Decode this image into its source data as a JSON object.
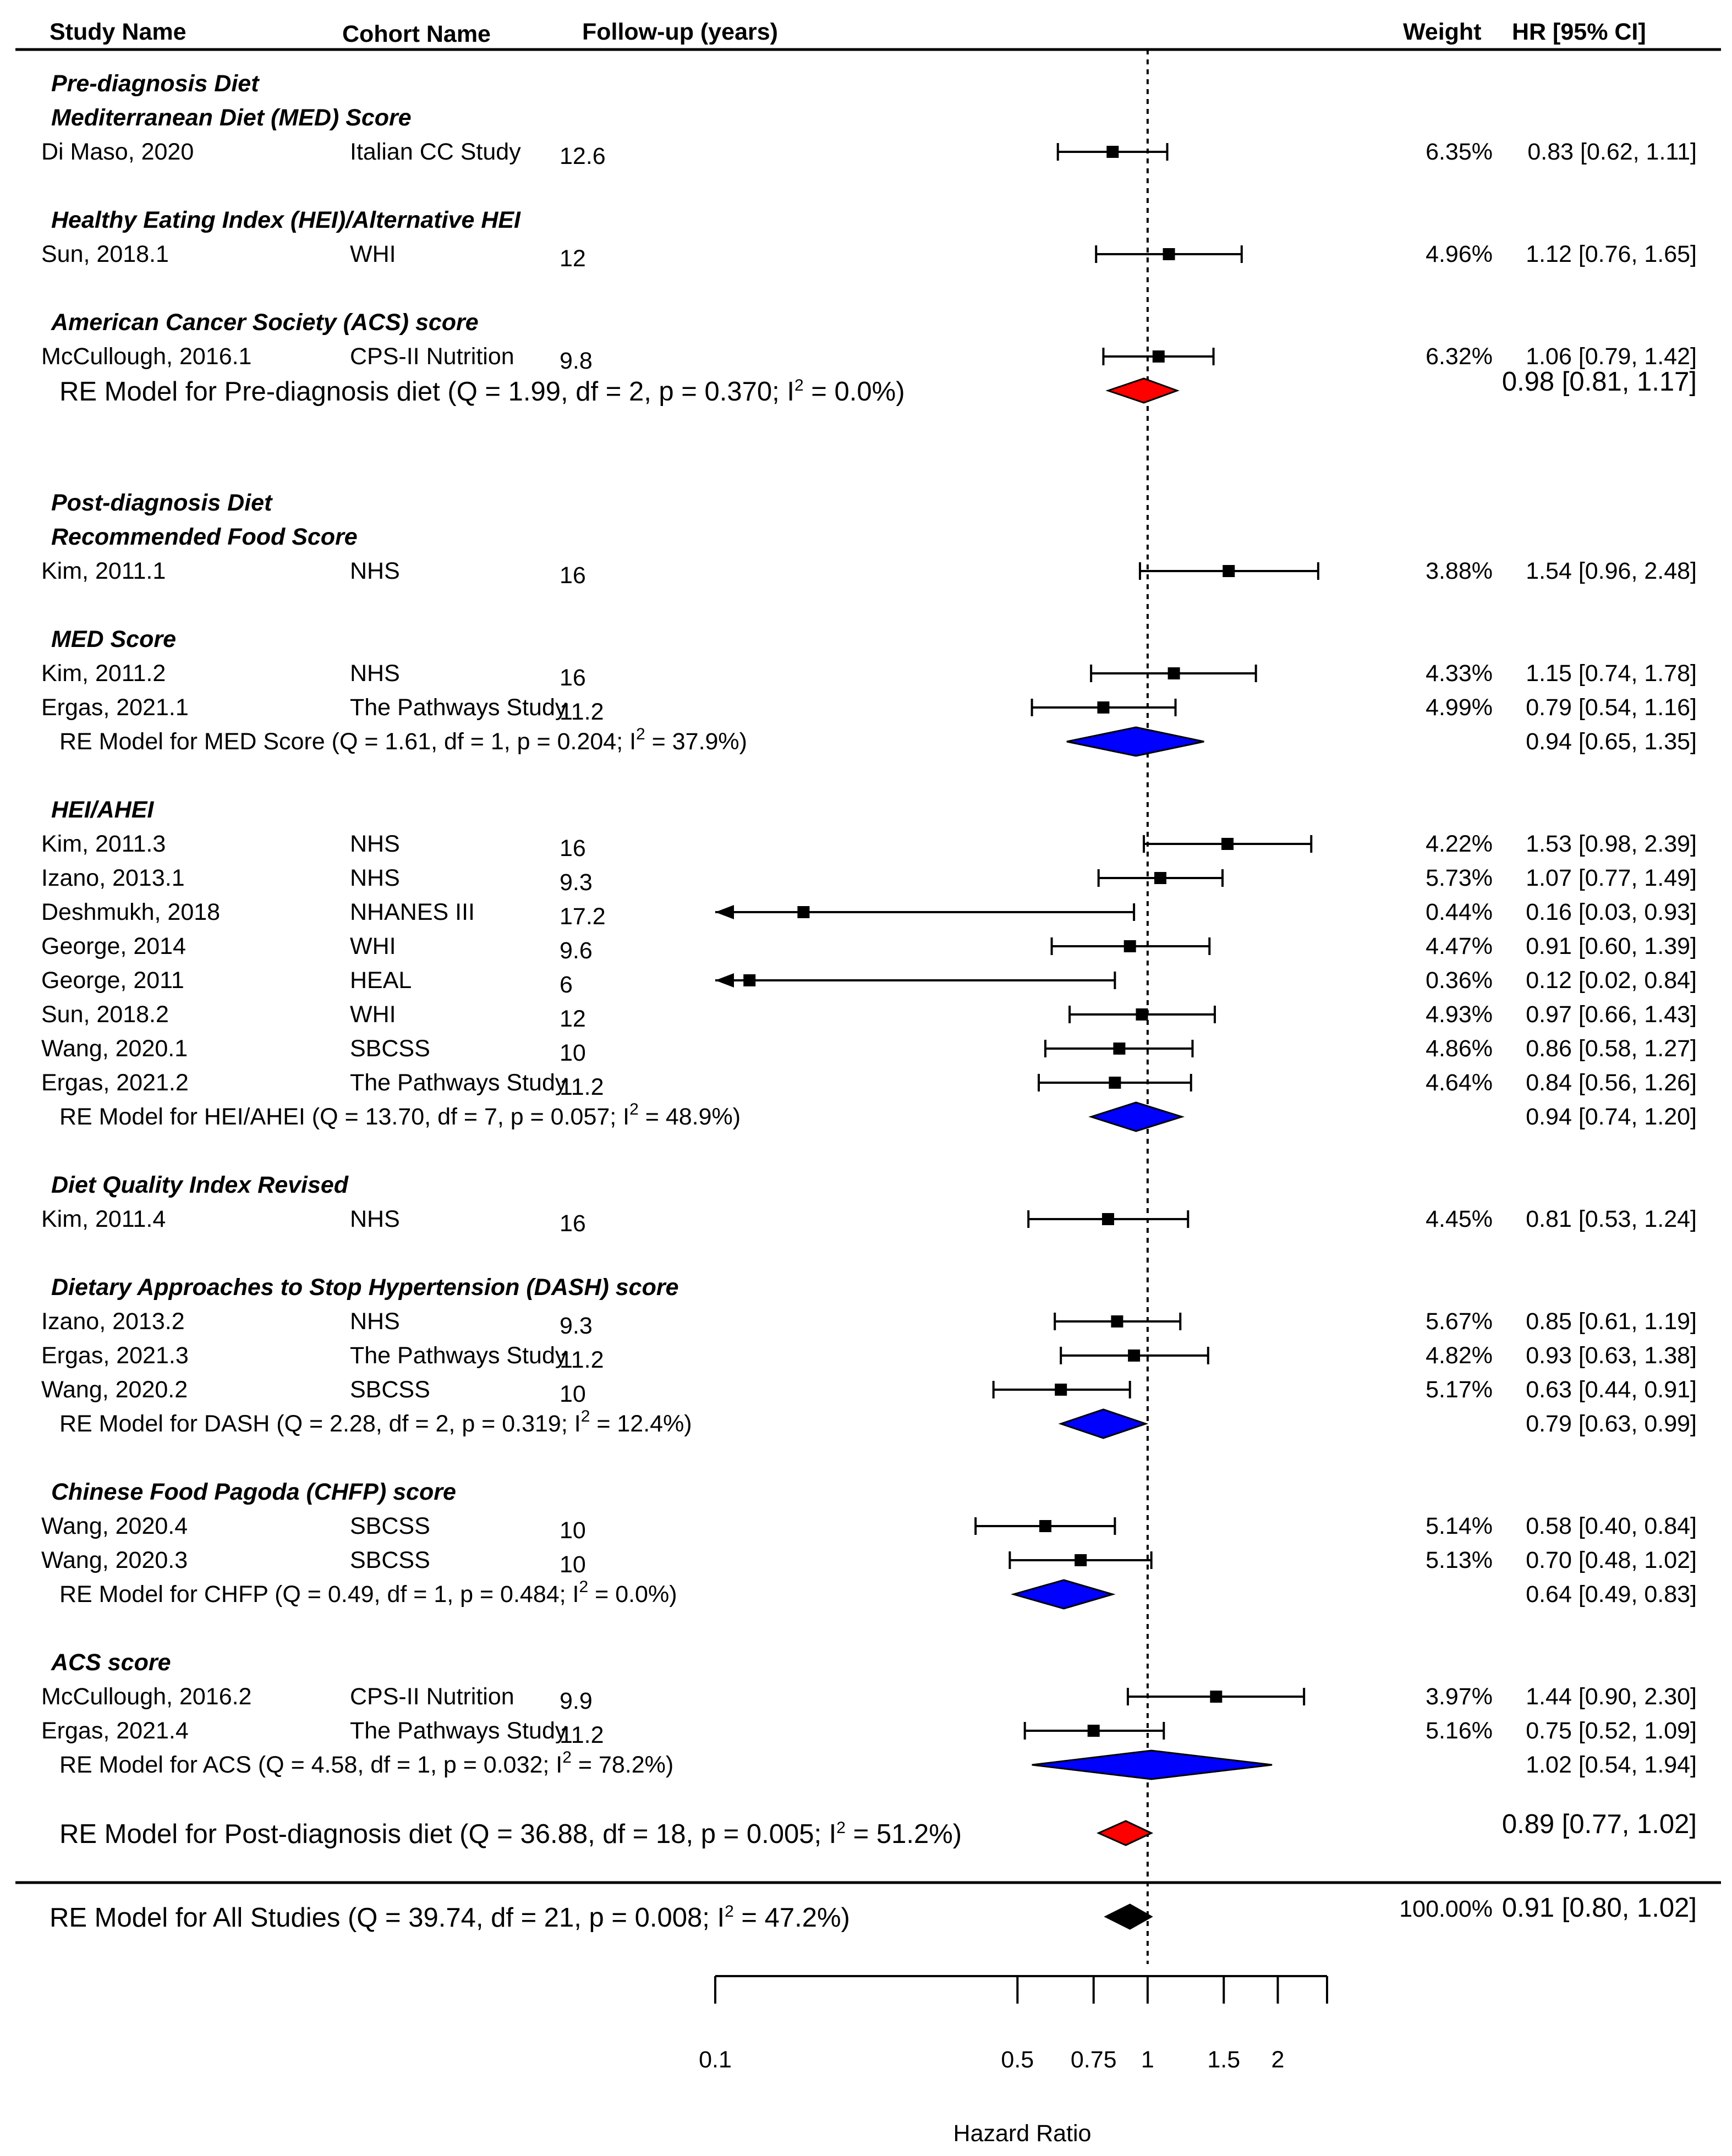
{
  "headers": {
    "study": "Study Name",
    "cohort": "Cohort Name",
    "followup": "Follow-up (years)",
    "weight": "Weight",
    "hr": "HR [95% CI]"
  },
  "chart_data": {
    "type": "forest",
    "xlabel": "Hazard Ratio",
    "scale": "log",
    "ticks": [
      0.1,
      0.5,
      0.75,
      1,
      1.5,
      2
    ],
    "tick_labels": [
      "0.1",
      "0.5",
      "0.75",
      "1",
      "1.5",
      "2"
    ],
    "reference_line": 1,
    "rows": [
      {
        "kind": "group",
        "label": "Pre-diagnosis Diet"
      },
      {
        "kind": "group",
        "label": "Mediterranean Diet (MED) Score"
      },
      {
        "kind": "study",
        "study": "Di Maso, 2020",
        "cohort": "Italian CC Study",
        "followup": "12.6",
        "weight": "6.35%",
        "ci_text": "0.83 [0.62, 1.11]",
        "hr": 0.83,
        "lo": 0.62,
        "hi": 1.11
      },
      {
        "kind": "gap"
      },
      {
        "kind": "group",
        "label": "Healthy Eating Index (HEI)/Alternative HEI"
      },
      {
        "kind": "study",
        "study": "Sun, 2018.1",
        "cohort": "WHI",
        "followup": "12",
        "weight": "4.96%",
        "ci_text": "1.12 [0.76, 1.65]",
        "hr": 1.12,
        "lo": 0.76,
        "hi": 1.65
      },
      {
        "kind": "gap"
      },
      {
        "kind": "group",
        "label": "American Cancer Society (ACS) score"
      },
      {
        "kind": "study",
        "study": "McCullough, 2016.1",
        "cohort": "CPS-II Nutrition",
        "followup": "9.8",
        "weight": "6.32%",
        "ci_text": "1.06 [0.79, 1.42]",
        "hr": 1.06,
        "lo": 0.79,
        "hi": 1.42
      },
      {
        "kind": "summary",
        "label": "RE Model for Pre-diagnosis diet (Q = 1.99, df = 2, p = 0.370; I² = 0.0%)",
        "ci_text": "0.98 [0.81, 1.17]",
        "hr": 0.98,
        "lo": 0.81,
        "hi": 1.17,
        "color": "#ff0000",
        "big": true
      },
      {
        "kind": "gap"
      },
      {
        "kind": "gap"
      },
      {
        "kind": "group",
        "label": "Post-diagnosis Diet"
      },
      {
        "kind": "group",
        "label": "Recommended Food Score"
      },
      {
        "kind": "study",
        "study": "Kim, 2011.1",
        "cohort": "NHS",
        "followup": "16",
        "weight": "3.88%",
        "ci_text": "1.54 [0.96, 2.48]",
        "hr": 1.54,
        "lo": 0.96,
        "hi": 2.48
      },
      {
        "kind": "gap"
      },
      {
        "kind": "group",
        "label": "MED Score"
      },
      {
        "kind": "study",
        "study": "Kim, 2011.2",
        "cohort": "NHS",
        "followup": "16",
        "weight": "4.33%",
        "ci_text": "1.15 [0.74, 1.78]",
        "hr": 1.15,
        "lo": 0.74,
        "hi": 1.78
      },
      {
        "kind": "study",
        "study": "Ergas, 2021.1",
        "cohort": "The Pathways Study",
        "followup": "11.2",
        "weight": "4.99%",
        "ci_text": "0.79 [0.54, 1.16]",
        "hr": 0.79,
        "lo": 0.54,
        "hi": 1.16
      },
      {
        "kind": "summary",
        "label": "RE Model for MED Score (Q = 1.61, df = 1, p = 0.204; I² = 37.9%)",
        "ci_text": "0.94 [0.65, 1.35]",
        "hr": 0.94,
        "lo": 0.65,
        "hi": 1.35,
        "color": "#0000ff",
        "big": false
      },
      {
        "kind": "gap"
      },
      {
        "kind": "group",
        "label": "HEI/AHEI"
      },
      {
        "kind": "study",
        "study": "Kim, 2011.3",
        "cohort": "NHS",
        "followup": "16",
        "weight": "4.22%",
        "ci_text": "1.53 [0.98, 2.39]",
        "hr": 1.53,
        "lo": 0.98,
        "hi": 2.39
      },
      {
        "kind": "study",
        "study": "Izano, 2013.1",
        "cohort": "NHS",
        "followup": "9.3",
        "weight": "5.73%",
        "ci_text": "1.07 [0.77, 1.49]",
        "hr": 1.07,
        "lo": 0.77,
        "hi": 1.49
      },
      {
        "kind": "study",
        "study": "Deshmukh, 2018",
        "cohort": "NHANES III",
        "followup": "17.2",
        "weight": "0.44%",
        "ci_text": "0.16 [0.03, 0.93]",
        "hr": 0.16,
        "lo": 0.03,
        "hi": 0.93,
        "clipped": true
      },
      {
        "kind": "study",
        "study": "George, 2014",
        "cohort": "WHI",
        "followup": "9.6",
        "weight": "4.47%",
        "ci_text": "0.91 [0.60, 1.39]",
        "hr": 0.91,
        "lo": 0.6,
        "hi": 1.39
      },
      {
        "kind": "study",
        "study": "George, 2011",
        "cohort": "HEAL",
        "followup": "6",
        "weight": "0.36%",
        "ci_text": "0.12 [0.02, 0.84]",
        "hr": 0.12,
        "lo": 0.02,
        "hi": 0.84,
        "clipped": true
      },
      {
        "kind": "study",
        "study": "Sun, 2018.2",
        "cohort": "WHI",
        "followup": "12",
        "weight": "4.93%",
        "ci_text": "0.97 [0.66, 1.43]",
        "hr": 0.97,
        "lo": 0.66,
        "hi": 1.43
      },
      {
        "kind": "study",
        "study": "Wang, 2020.1",
        "cohort": "SBCSS",
        "followup": "10",
        "weight": "4.86%",
        "ci_text": "0.86 [0.58, 1.27]",
        "hr": 0.86,
        "lo": 0.58,
        "hi": 1.27
      },
      {
        "kind": "study",
        "study": "Ergas, 2021.2",
        "cohort": "The Pathways Study",
        "followup": "11.2",
        "weight": "4.64%",
        "ci_text": "0.84 [0.56, 1.26]",
        "hr": 0.84,
        "lo": 0.56,
        "hi": 1.26
      },
      {
        "kind": "summary",
        "label": "RE Model for HEI/AHEI (Q = 13.70, df = 7, p = 0.057; I² = 48.9%)",
        "ci_text": "0.94 [0.74, 1.20]",
        "hr": 0.94,
        "lo": 0.74,
        "hi": 1.2,
        "color": "#0000ff",
        "big": false
      },
      {
        "kind": "gap"
      },
      {
        "kind": "group",
        "label": "Diet Quality Index Revised"
      },
      {
        "kind": "study",
        "study": "Kim, 2011.4",
        "cohort": "NHS",
        "followup": "16",
        "weight": "4.45%",
        "ci_text": "0.81 [0.53, 1.24]",
        "hr": 0.81,
        "lo": 0.53,
        "hi": 1.24
      },
      {
        "kind": "gap"
      },
      {
        "kind": "group",
        "label": "Dietary Approaches to Stop Hypertension (DASH) score"
      },
      {
        "kind": "study",
        "study": "Izano, 2013.2",
        "cohort": "NHS",
        "followup": "9.3",
        "weight": "5.67%",
        "ci_text": "0.85 [0.61, 1.19]",
        "hr": 0.85,
        "lo": 0.61,
        "hi": 1.19
      },
      {
        "kind": "study",
        "study": "Ergas, 2021.3",
        "cohort": "The Pathways Study",
        "followup": "11.2",
        "weight": "4.82%",
        "ci_text": "0.93 [0.63, 1.38]",
        "hr": 0.93,
        "lo": 0.63,
        "hi": 1.38
      },
      {
        "kind": "study",
        "study": "Wang, 2020.2",
        "cohort": "SBCSS",
        "followup": "10",
        "weight": "5.17%",
        "ci_text": "0.63 [0.44, 0.91]",
        "hr": 0.63,
        "lo": 0.44,
        "hi": 0.91
      },
      {
        "kind": "summary",
        "label": "RE Model for DASH (Q = 2.28, df = 2, p = 0.319; I² = 12.4%)",
        "ci_text": "0.79 [0.63, 0.99]",
        "hr": 0.79,
        "lo": 0.63,
        "hi": 0.99,
        "color": "#0000ff",
        "big": false
      },
      {
        "kind": "gap"
      },
      {
        "kind": "group",
        "label": "Chinese Food Pagoda (CHFP) score"
      },
      {
        "kind": "study",
        "study": "Wang, 2020.4",
        "cohort": "SBCSS",
        "followup": "10",
        "weight": "5.14%",
        "ci_text": "0.58 [0.40, 0.84]",
        "hr": 0.58,
        "lo": 0.4,
        "hi": 0.84
      },
      {
        "kind": "study",
        "study": "Wang, 2020.3",
        "cohort": "SBCSS",
        "followup": "10",
        "weight": "5.13%",
        "ci_text": "0.70 [0.48, 1.02]",
        "hr": 0.7,
        "lo": 0.48,
        "hi": 1.02
      },
      {
        "kind": "summary",
        "label": "RE Model for CHFP (Q = 0.49, df = 1, p = 0.484; I² = 0.0%)",
        "ci_text": "0.64 [0.49, 0.83]",
        "hr": 0.64,
        "lo": 0.49,
        "hi": 0.83,
        "color": "#0000ff",
        "big": false
      },
      {
        "kind": "gap"
      },
      {
        "kind": "group",
        "label": "ACS score"
      },
      {
        "kind": "study",
        "study": "McCullough, 2016.2",
        "cohort": "CPS-II Nutrition",
        "followup": "9.9",
        "weight": "3.97%",
        "ci_text": "1.44 [0.90, 2.30]",
        "hr": 1.44,
        "lo": 0.9,
        "hi": 2.3
      },
      {
        "kind": "study",
        "study": "Ergas, 2021.4",
        "cohort": "The Pathways Study",
        "followup": "11.2",
        "weight": "5.16%",
        "ci_text": "0.75 [0.52, 1.09]",
        "hr": 0.75,
        "lo": 0.52,
        "hi": 1.09
      },
      {
        "kind": "summary",
        "label": "RE Model for ACS (Q = 4.58, df = 1, p = 0.032; I² = 78.2%)",
        "ci_text": "1.02 [0.54, 1.94]",
        "hr": 1.02,
        "lo": 0.54,
        "hi": 1.94,
        "color": "#0000ff",
        "big": false
      },
      {
        "kind": "gap"
      },
      {
        "kind": "summary",
        "label": "RE Model for Post-diagnosis diet (Q = 36.88, df = 18, p = 0.005; I² = 51.2%)",
        "ci_text": "0.89 [0.77, 1.02]",
        "hr": 0.89,
        "lo": 0.77,
        "hi": 1.02,
        "color": "#ff0000",
        "big": true
      },
      {
        "kind": "rule"
      },
      {
        "kind": "summary",
        "label": "RE Model for All Studies (Q = 39.74, df = 21, p = 0.008; I² = 47.2%)",
        "ci_text": "0.91 [0.80, 1.02]",
        "weight": "100.00%",
        "hr": 0.91,
        "lo": 0.8,
        "hi": 1.02,
        "color": "#000000",
        "big": true,
        "overall": true
      }
    ]
  }
}
